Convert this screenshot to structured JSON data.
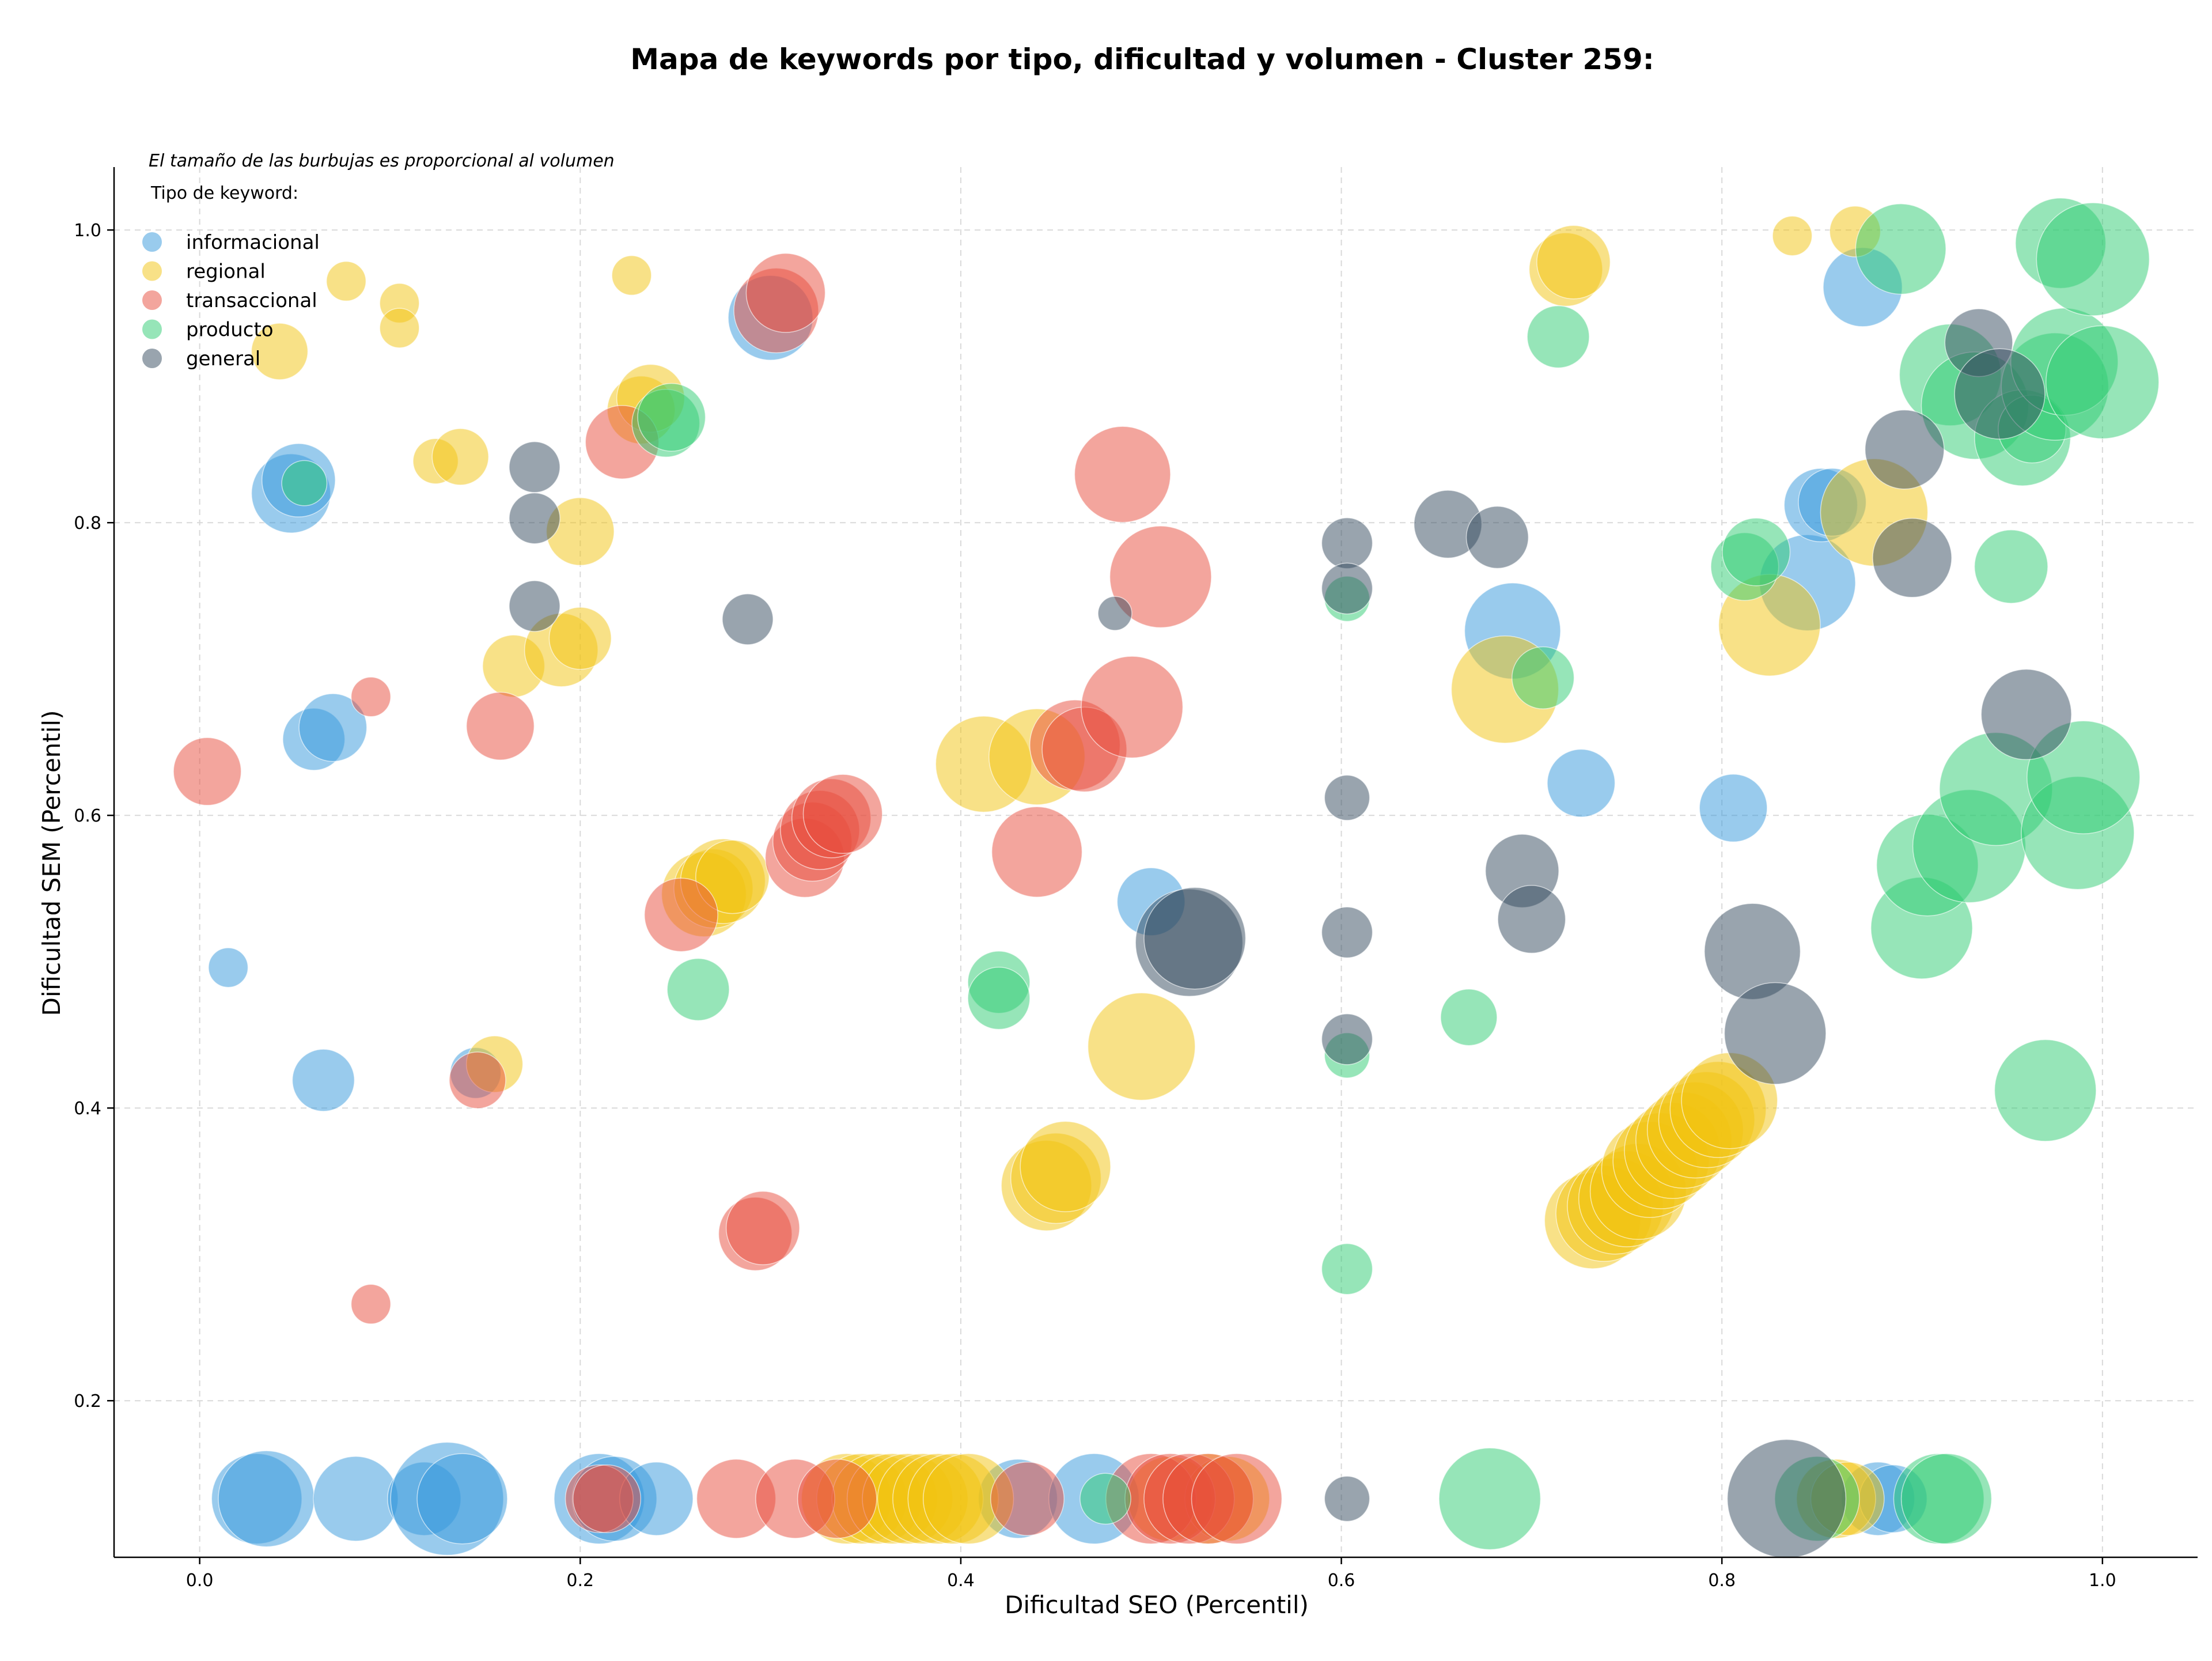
{
  "chart_data": {
    "type": "scatter",
    "title": "Mapa de keywords por tipo, dificultad y volumen - Cluster 259:",
    "note": "El tamaño de las burbujas es proporcional al volumen",
    "xlabel": "Dificultad SEO (Percentil)",
    "ylabel": "Dificultad SEM (Percentil)",
    "xlim": [
      -0.045,
      1.05
    ],
    "ylim": [
      0.093,
      1.043
    ],
    "xticks": [
      "0.0",
      "0.2",
      "0.4",
      "0.6",
      "0.8",
      "1.0"
    ],
    "yticks": [
      "0.2",
      "0.4",
      "0.6",
      "0.8",
      "1.0"
    ],
    "grid": true,
    "legend": {
      "title": "Tipo de keyword:",
      "placement": "top-left",
      "entries": [
        {
          "name": "informacional",
          "color": "#3498db"
        },
        {
          "name": "regional",
          "color": "#f1c40f"
        },
        {
          "name": "transaccional",
          "color": "#e74c3c"
        },
        {
          "name": "producto",
          "color": "#2ecc71"
        },
        {
          "name": "general",
          "color": "#34495e"
        }
      ]
    },
    "series": [
      {
        "name": "informacional",
        "color": "#3498db",
        "points": [
          [
            0.015,
            0.496,
            14
          ],
          [
            0.048,
            0.82,
            28
          ],
          [
            0.052,
            0.829,
            26
          ],
          [
            0.06,
            0.652,
            22
          ],
          [
            0.07,
            0.66,
            24
          ],
          [
            0.065,
            0.419,
            22
          ],
          [
            0.3,
            0.94,
            30
          ],
          [
            0.03,
            0.133,
            32
          ],
          [
            0.035,
            0.133,
            34
          ],
          [
            0.082,
            0.133,
            30
          ],
          [
            0.118,
            0.133,
            26
          ],
          [
            0.13,
            0.133,
            40
          ],
          [
            0.138,
            0.133,
            32
          ],
          [
            0.21,
            0.133,
            32
          ],
          [
            0.218,
            0.133,
            30
          ],
          [
            0.24,
            0.133,
            26
          ],
          [
            0.43,
            0.133,
            28
          ],
          [
            0.47,
            0.133,
            32
          ],
          [
            0.5,
            0.541,
            24
          ],
          [
            0.69,
            0.726,
            34
          ],
          [
            0.726,
            0.622,
            24
          ],
          [
            0.806,
            0.605,
            24
          ],
          [
            0.845,
            0.759,
            34
          ],
          [
            0.852,
            0.812,
            26
          ],
          [
            0.858,
            0.814,
            24
          ],
          [
            0.874,
            0.961,
            28
          ],
          [
            0.882,
            0.133,
            26
          ],
          [
            0.89,
            0.133,
            24
          ],
          [
            0.145,
            0.424,
            18
          ]
        ]
      },
      {
        "name": "regional",
        "color": "#f1c40f",
        "points": [
          [
            0.042,
            0.917,
            20
          ],
          [
            0.077,
            0.965,
            14
          ],
          [
            0.105,
            0.95,
            14
          ],
          [
            0.105,
            0.933,
            14
          ],
          [
            0.124,
            0.842,
            16
          ],
          [
            0.137,
            0.845,
            20
          ],
          [
            0.165,
            0.702,
            22
          ],
          [
            0.19,
            0.713,
            26
          ],
          [
            0.2,
            0.721,
            22
          ],
          [
            0.2,
            0.794,
            24
          ],
          [
            0.227,
            0.969,
            14
          ],
          [
            0.232,
            0.877,
            24
          ],
          [
            0.237,
            0.885,
            24
          ],
          [
            0.155,
            0.43,
            20
          ],
          [
            0.265,
            0.546,
            30
          ],
          [
            0.27,
            0.55,
            28
          ],
          [
            0.275,
            0.555,
            30
          ],
          [
            0.28,
            0.558,
            26
          ],
          [
            0.34,
            0.133,
            32
          ],
          [
            0.348,
            0.133,
            32
          ],
          [
            0.356,
            0.133,
            32
          ],
          [
            0.364,
            0.133,
            32
          ],
          [
            0.372,
            0.133,
            32
          ],
          [
            0.38,
            0.133,
            32
          ],
          [
            0.388,
            0.133,
            32
          ],
          [
            0.396,
            0.133,
            32
          ],
          [
            0.404,
            0.133,
            32
          ],
          [
            0.412,
            0.635,
            34
          ],
          [
            0.44,
            0.64,
            34
          ],
          [
            0.445,
            0.347,
            32
          ],
          [
            0.45,
            0.352,
            32
          ],
          [
            0.455,
            0.36,
            32
          ],
          [
            0.495,
            0.442,
            38
          ],
          [
            0.51,
            0.133,
            30
          ],
          [
            0.53,
            0.133,
            32
          ],
          [
            0.54,
            0.133,
            30
          ],
          [
            0.686,
            0.686,
            38
          ],
          [
            0.718,
            0.973,
            26
          ],
          [
            0.722,
            0.978,
            26
          ],
          [
            0.732,
            0.323,
            34
          ],
          [
            0.738,
            0.328,
            34
          ],
          [
            0.744,
            0.333,
            34
          ],
          [
            0.75,
            0.338,
            34
          ],
          [
            0.756,
            0.343,
            34
          ],
          [
            0.762,
            0.358,
            34
          ],
          [
            0.768,
            0.364,
            34
          ],
          [
            0.774,
            0.371,
            34
          ],
          [
            0.78,
            0.378,
            34
          ],
          [
            0.786,
            0.385,
            34
          ],
          [
            0.792,
            0.392,
            34
          ],
          [
            0.798,
            0.399,
            34
          ],
          [
            0.804,
            0.405,
            34
          ],
          [
            0.825,
            0.73,
            36
          ],
          [
            0.837,
            0.996,
            14
          ],
          [
            0.86,
            0.133,
            28
          ],
          [
            0.866,
            0.133,
            26
          ],
          [
            0.87,
            0.999,
            18
          ],
          [
            0.88,
            0.807,
            38
          ]
        ]
      },
      {
        "name": "transaccional",
        "color": "#e74c3c",
        "points": [
          [
            0.004,
            0.63,
            24
          ],
          [
            0.09,
            0.681,
            14
          ],
          [
            0.09,
            0.266,
            14
          ],
          [
            0.146,
            0.419,
            20
          ],
          [
            0.158,
            0.661,
            24
          ],
          [
            0.222,
            0.855,
            26
          ],
          [
            0.253,
            0.532,
            26
          ],
          [
            0.21,
            0.133,
            24
          ],
          [
            0.214,
            0.133,
            24
          ],
          [
            0.282,
            0.133,
            28
          ],
          [
            0.292,
            0.314,
            26
          ],
          [
            0.296,
            0.318,
            26
          ],
          [
            0.303,
            0.945,
            30
          ],
          [
            0.308,
            0.957,
            28
          ],
          [
            0.313,
            0.133,
            28
          ],
          [
            0.318,
            0.571,
            28
          ],
          [
            0.322,
            0.582,
            28
          ],
          [
            0.326,
            0.59,
            28
          ],
          [
            0.332,
            0.598,
            28
          ],
          [
            0.338,
            0.601,
            28
          ],
          [
            0.335,
            0.133,
            28
          ],
          [
            0.435,
            0.133,
            26
          ],
          [
            0.44,
            0.575,
            32
          ],
          [
            0.46,
            0.648,
            32
          ],
          [
            0.465,
            0.645,
            30
          ],
          [
            0.485,
            0.833,
            34
          ],
          [
            0.49,
            0.674,
            36
          ],
          [
            0.505,
            0.763,
            36
          ],
          [
            0.5,
            0.133,
            32
          ],
          [
            0.51,
            0.133,
            32
          ],
          [
            0.52,
            0.133,
            32
          ],
          [
            0.53,
            0.133,
            32
          ],
          [
            0.545,
            0.133,
            32
          ]
        ]
      },
      {
        "name": "producto",
        "color": "#2ecc71",
        "points": [
          [
            0.055,
            0.827,
            16
          ],
          [
            0.245,
            0.868,
            24
          ],
          [
            0.248,
            0.872,
            24
          ],
          [
            0.262,
            0.481,
            22
          ],
          [
            0.42,
            0.486,
            22
          ],
          [
            0.42,
            0.475,
            22
          ],
          [
            0.476,
            0.133,
            18
          ],
          [
            0.603,
            0.748,
            16
          ],
          [
            0.603,
            0.436,
            16
          ],
          [
            0.603,
            0.29,
            18
          ],
          [
            0.667,
            0.462,
            20
          ],
          [
            0.678,
            0.133,
            36
          ],
          [
            0.706,
            0.694,
            22
          ],
          [
            0.714,
            0.927,
            22
          ],
          [
            0.812,
            0.77,
            24
          ],
          [
            0.818,
            0.78,
            24
          ],
          [
            0.85,
            0.133,
            30
          ],
          [
            0.894,
            0.987,
            32
          ],
          [
            0.905,
            0.523,
            36
          ],
          [
            0.908,
            0.566,
            36
          ],
          [
            0.914,
            0.133,
            32
          ],
          [
            0.918,
            0.133,
            32
          ],
          [
            0.92,
            0.901,
            36
          ],
          [
            0.93,
            0.579,
            40
          ],
          [
            0.933,
            0.88,
            38
          ],
          [
            0.944,
            0.618,
            40
          ],
          [
            0.952,
            0.77,
            26
          ],
          [
            0.958,
            0.858,
            34
          ],
          [
            0.963,
            0.864,
            24
          ],
          [
            0.97,
            0.412,
            36
          ],
          [
            0.975,
            0.893,
            38
          ],
          [
            0.978,
            0.991,
            32
          ],
          [
            0.98,
            0.91,
            38
          ],
          [
            0.987,
            0.588,
            40
          ],
          [
            0.99,
            0.626,
            40
          ],
          [
            0.995,
            0.98,
            40
          ],
          [
            1.0,
            0.896,
            40
          ]
        ]
      },
      {
        "name": "general",
        "color": "#34495e",
        "points": [
          [
            0.176,
            0.838,
            18
          ],
          [
            0.176,
            0.803,
            18
          ],
          [
            0.176,
            0.743,
            18
          ],
          [
            0.288,
            0.734,
            18
          ],
          [
            0.481,
            0.738,
            12
          ],
          [
            0.52,
            0.513,
            38
          ],
          [
            0.523,
            0.516,
            36
          ],
          [
            0.603,
            0.786,
            18
          ],
          [
            0.603,
            0.755,
            18
          ],
          [
            0.603,
            0.612,
            16
          ],
          [
            0.603,
            0.52,
            18
          ],
          [
            0.603,
            0.447,
            18
          ],
          [
            0.603,
            0.133,
            16
          ],
          [
            0.656,
            0.799,
            24
          ],
          [
            0.682,
            0.79,
            22
          ],
          [
            0.695,
            0.562,
            26
          ],
          [
            0.7,
            0.529,
            24
          ],
          [
            0.816,
            0.507,
            34
          ],
          [
            0.828,
            0.451,
            36
          ],
          [
            0.834,
            0.133,
            42
          ],
          [
            0.896,
            0.85,
            28
          ],
          [
            0.9,
            0.776,
            28
          ],
          [
            0.935,
            0.923,
            24
          ],
          [
            0.946,
            0.888,
            32
          ],
          [
            0.96,
            0.669,
            32
          ]
        ]
      }
    ]
  }
}
